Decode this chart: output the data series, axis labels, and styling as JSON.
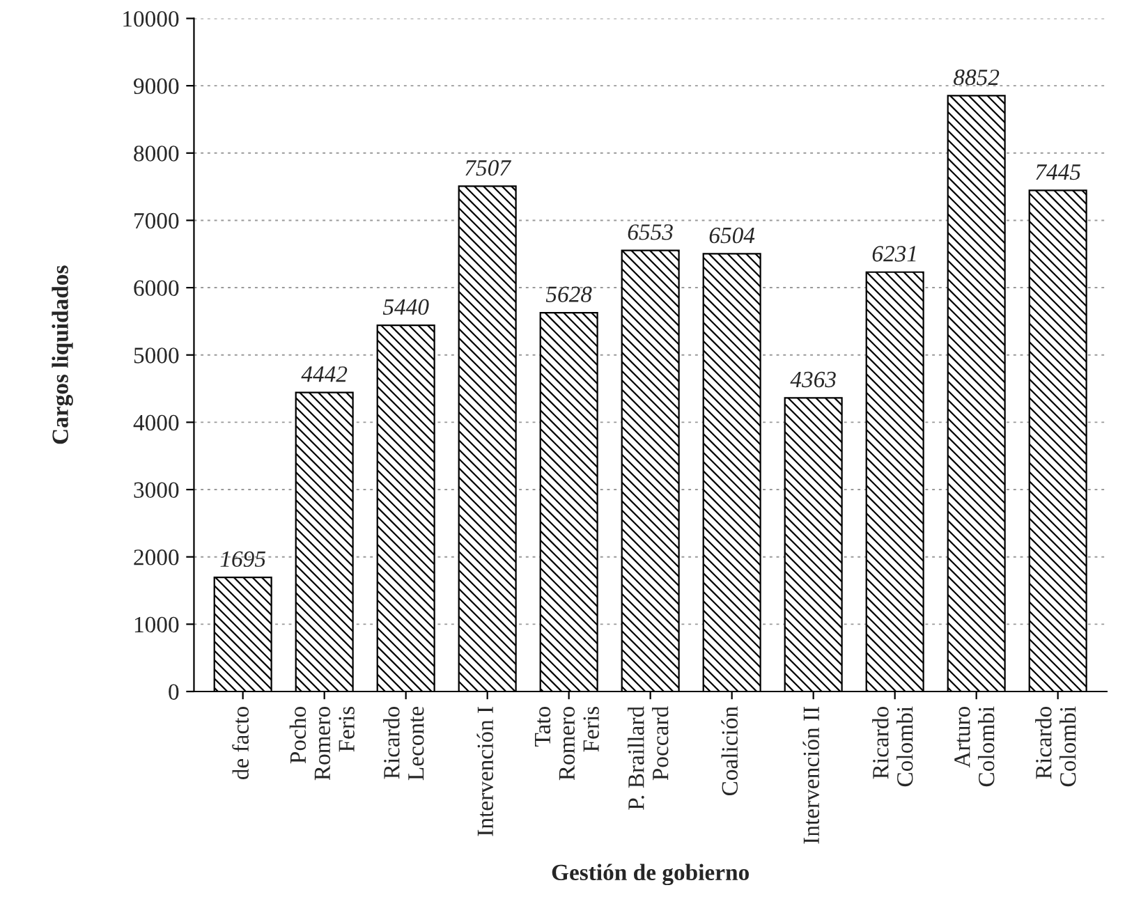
{
  "chart_data": {
    "type": "bar",
    "xlabel": "Gestión de gobierno",
    "ylabel": "Cargos liquidados",
    "categories": [
      "de facto",
      "Pocho\nRomero\nFeris",
      "Ricardo\nLeconte",
      "Intervención I",
      "Tato\nRomero\nFeris",
      "P. Braillard\nPoccard",
      "Coalición",
      "Intervención II",
      "Ricardo\nColombi",
      "Arturo\nColombi",
      "Ricardo\nColombi"
    ],
    "values": [
      1695,
      4442,
      5440,
      7507,
      5628,
      6553,
      6504,
      4363,
      6231,
      8852,
      7445
    ],
    "color": "#000000",
    "ylim": [
      0,
      10000
    ],
    "yticks": [
      0,
      1000,
      2000,
      3000,
      4000,
      5000,
      6000,
      7000,
      8000,
      9000,
      10000
    ],
    "grid": "y",
    "data_labels": true
  }
}
